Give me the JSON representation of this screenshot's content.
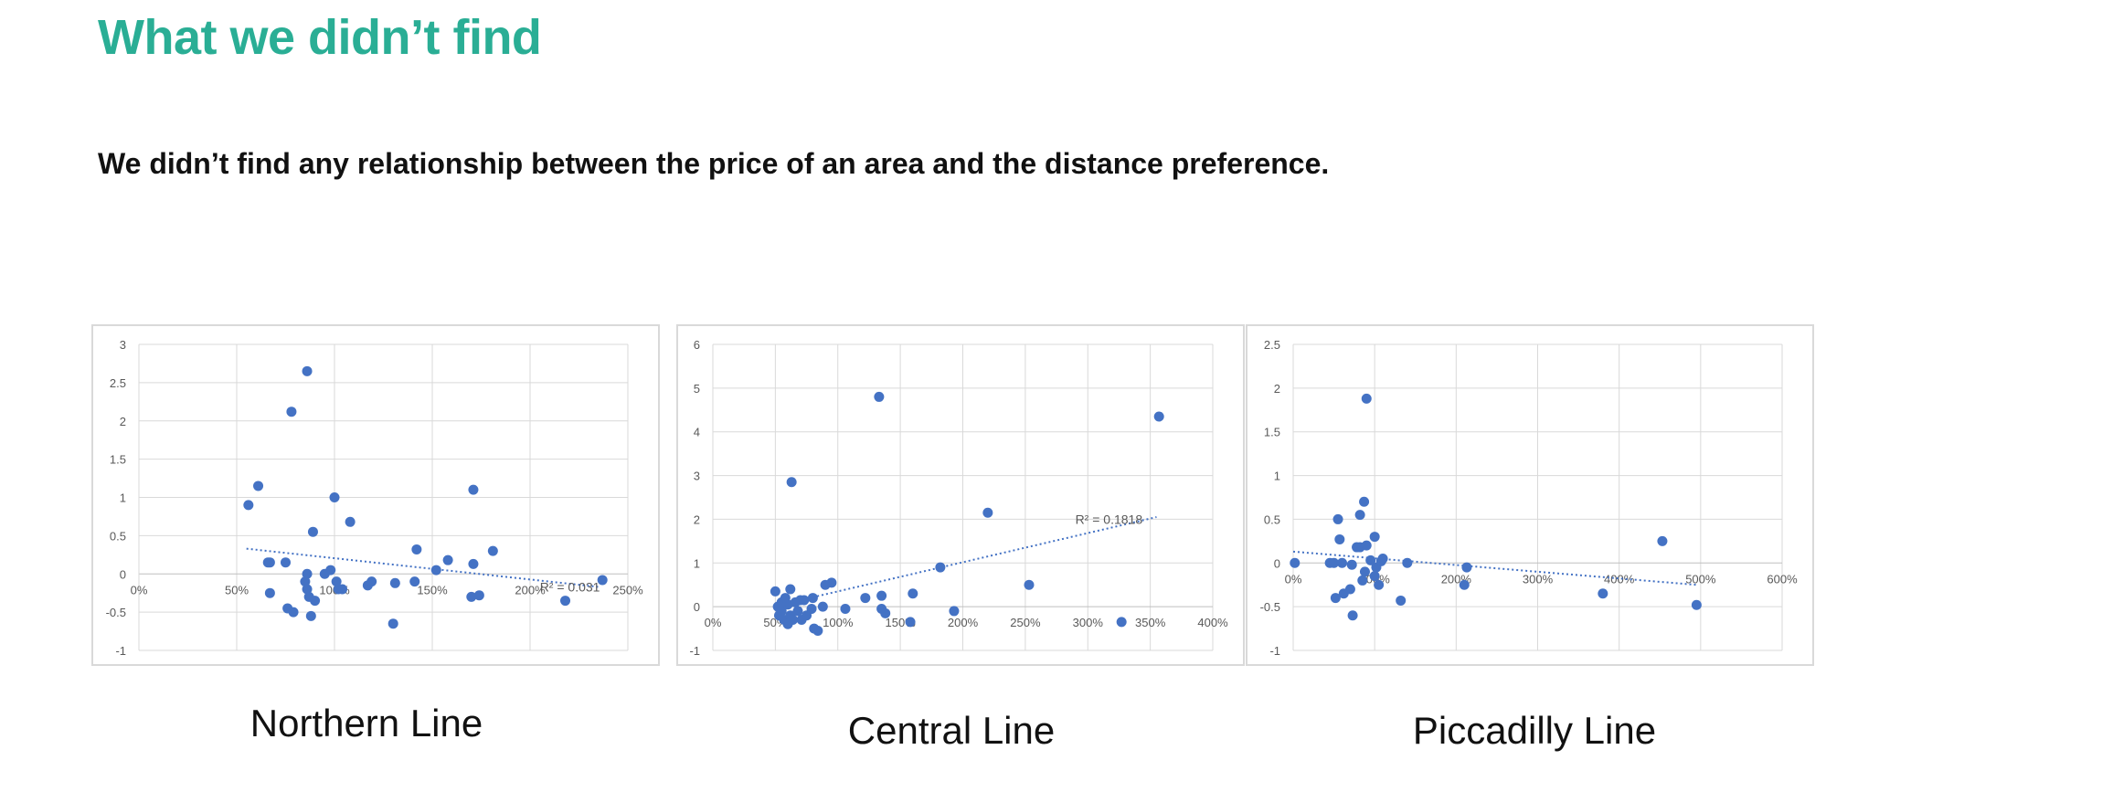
{
  "slide": {
    "title": "What we didn’t find",
    "subtitle": "We didn’t find any relationship between the price of an area and the distance preference."
  },
  "colors": {
    "title": "#2aae95",
    "points": "#4472c4",
    "trendline": "#4472c4",
    "grid": "#d9d9d9"
  },
  "chart_data": [
    {
      "type": "scatter",
      "caption": "Northern Line",
      "xlim": [
        0,
        2.5
      ],
      "ylim": [
        -1,
        3
      ],
      "x_ticks": [
        0,
        0.5,
        1,
        1.5,
        2,
        2.5
      ],
      "x_tick_labels": [
        "0%",
        "50%",
        "100%",
        "150%",
        "200%",
        "250%"
      ],
      "y_ticks": [
        -1,
        -0.5,
        0,
        0.5,
        1,
        1.5,
        2,
        2.5,
        3
      ],
      "y_tick_labels": [
        "-1",
        "-0.5",
        "0",
        "0.5",
        "1",
        "1.5",
        "2",
        "2.5",
        "3"
      ],
      "grid": true,
      "trendline": {
        "x": [
          0.55,
          2.35
        ],
        "y": [
          0.33,
          -0.17
        ],
        "label": "R² = 0.031",
        "label_pos": [
          2.05,
          -0.17
        ]
      },
      "points": [
        [
          0.56,
          0.9
        ],
        [
          0.61,
          1.15
        ],
        [
          0.66,
          0.15
        ],
        [
          0.67,
          0.15
        ],
        [
          0.67,
          -0.25
        ],
        [
          0.75,
          0.15
        ],
        [
          0.76,
          -0.45
        ],
        [
          0.78,
          2.12
        ],
        [
          0.79,
          -0.5
        ],
        [
          0.85,
          -0.1
        ],
        [
          0.86,
          2.65
        ],
        [
          0.86,
          0.0
        ],
        [
          0.86,
          -0.2
        ],
        [
          0.87,
          -0.3
        ],
        [
          0.88,
          -0.55
        ],
        [
          0.89,
          0.55
        ],
        [
          0.9,
          -0.35
        ],
        [
          0.95,
          0.0
        ],
        [
          0.98,
          0.05
        ],
        [
          1.0,
          1.0
        ],
        [
          1.01,
          -0.1
        ],
        [
          1.02,
          -0.2
        ],
        [
          1.04,
          -0.2
        ],
        [
          1.08,
          0.68
        ],
        [
          1.17,
          -0.15
        ],
        [
          1.19,
          -0.1
        ],
        [
          1.3,
          -0.65
        ],
        [
          1.31,
          -0.12
        ],
        [
          1.41,
          -0.1
        ],
        [
          1.42,
          0.32
        ],
        [
          1.52,
          0.05
        ],
        [
          1.58,
          0.18
        ],
        [
          1.7,
          -0.3
        ],
        [
          1.71,
          0.13
        ],
        [
          1.71,
          1.1
        ],
        [
          1.74,
          -0.28
        ],
        [
          1.81,
          0.3
        ],
        [
          2.18,
          -0.35
        ],
        [
          2.37,
          -0.08
        ]
      ]
    },
    {
      "type": "scatter",
      "caption": "Central Line",
      "xlim": [
        0,
        4
      ],
      "ylim": [
        -1,
        6
      ],
      "x_ticks": [
        0,
        0.5,
        1,
        1.5,
        2,
        2.5,
        3,
        3.5,
        4
      ],
      "x_tick_labels": [
        "0%",
        "50%",
        "100%",
        "150%",
        "200%",
        "250%",
        "300%",
        "350%",
        "400%"
      ],
      "y_ticks": [
        -1,
        0,
        1,
        2,
        3,
        4,
        5,
        6
      ],
      "y_tick_labels": [
        "-1",
        "0",
        "1",
        "2",
        "3",
        "4",
        "5",
        "6"
      ],
      "grid": true,
      "trendline": {
        "x": [
          0.55,
          3.55
        ],
        "y": [
          0.05,
          2.05
        ],
        "label": "R² = 0.1818",
        "label_pos": [
          2.9,
          2.0
        ]
      },
      "points": [
        [
          0.5,
          0.35
        ],
        [
          0.52,
          0.0
        ],
        [
          0.53,
          -0.2
        ],
        [
          0.55,
          -0.1
        ],
        [
          0.55,
          0.1
        ],
        [
          0.57,
          -0.3
        ],
        [
          0.58,
          0.2
        ],
        [
          0.6,
          -0.4
        ],
        [
          0.6,
          0.05
        ],
        [
          0.62,
          -0.2
        ],
        [
          0.62,
          0.4
        ],
        [
          0.63,
          2.85
        ],
        [
          0.64,
          -0.3
        ],
        [
          0.66,
          0.1
        ],
        [
          0.68,
          -0.1
        ],
        [
          0.7,
          0.15
        ],
        [
          0.71,
          -0.3
        ],
        [
          0.73,
          0.15
        ],
        [
          0.75,
          -0.2
        ],
        [
          0.79,
          -0.05
        ],
        [
          0.8,
          0.2
        ],
        [
          0.81,
          -0.5
        ],
        [
          0.84,
          -0.55
        ],
        [
          0.88,
          0.0
        ],
        [
          0.9,
          0.5
        ],
        [
          0.95,
          0.55
        ],
        [
          1.06,
          -0.05
        ],
        [
          1.22,
          0.2
        ],
        [
          1.33,
          4.8
        ],
        [
          1.35,
          0.25
        ],
        [
          1.35,
          -0.05
        ],
        [
          1.38,
          -0.15
        ],
        [
          1.58,
          -0.35
        ],
        [
          1.6,
          0.3
        ],
        [
          1.82,
          0.9
        ],
        [
          1.93,
          -0.1
        ],
        [
          2.2,
          2.15
        ],
        [
          2.53,
          0.5
        ],
        [
          3.27,
          -0.35
        ],
        [
          3.57,
          4.35
        ]
      ]
    },
    {
      "type": "scatter",
      "caption": "Piccadilly Line",
      "xlim": [
        0,
        6
      ],
      "ylim": [
        -1,
        2.5
      ],
      "x_ticks": [
        0,
        1,
        2,
        3,
        4,
        5,
        6
      ],
      "x_tick_labels": [
        "0%",
        "100%",
        "200%",
        "300%",
        "400%",
        "500%",
        "600%"
      ],
      "y_ticks": [
        -1,
        -0.5,
        0,
        0.5,
        1,
        1.5,
        2,
        2.5
      ],
      "y_tick_labels": [
        "-1",
        "-0.5",
        "0",
        "0.5",
        "1",
        "1.5",
        "2",
        "2.5"
      ],
      "grid": true,
      "trendline": {
        "x": [
          0.0,
          4.95
        ],
        "y": [
          0.13,
          -0.25
        ],
        "label": "",
        "label_pos": [
          0,
          0
        ]
      },
      "points": [
        [
          0.02,
          0.0
        ],
        [
          0.45,
          0.0
        ],
        [
          0.5,
          0.0
        ],
        [
          0.52,
          -0.4
        ],
        [
          0.55,
          0.5
        ],
        [
          0.57,
          0.27
        ],
        [
          0.6,
          0.0
        ],
        [
          0.62,
          -0.35
        ],
        [
          0.7,
          -0.3
        ],
        [
          0.72,
          -0.02
        ],
        [
          0.73,
          -0.6
        ],
        [
          0.78,
          0.18
        ],
        [
          0.82,
          0.18
        ],
        [
          0.82,
          0.55
        ],
        [
          0.85,
          -0.2
        ],
        [
          0.87,
          0.7
        ],
        [
          0.88,
          -0.1
        ],
        [
          0.9,
          0.2
        ],
        [
          0.9,
          1.88
        ],
        [
          0.95,
          0.03
        ],
        [
          1.0,
          0.3
        ],
        [
          1.0,
          -0.15
        ],
        [
          1.02,
          -0.05
        ],
        [
          1.05,
          -0.25
        ],
        [
          1.08,
          0.02
        ],
        [
          1.1,
          0.05
        ],
        [
          1.32,
          -0.43
        ],
        [
          1.4,
          0.0
        ],
        [
          2.1,
          -0.25
        ],
        [
          2.13,
          -0.05
        ],
        [
          3.8,
          -0.35
        ],
        [
          4.53,
          0.25
        ],
        [
          4.95,
          -0.48
        ]
      ]
    }
  ]
}
